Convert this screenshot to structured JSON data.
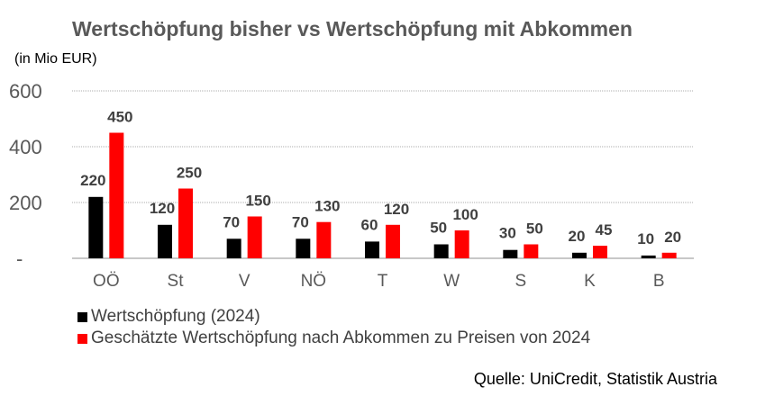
{
  "chart_data": {
    "type": "bar",
    "title": "Wertschöpfung bisher vs Wertschöpfung mit Abkommen",
    "unit_label": "(in Mio EUR)",
    "xlabel": "",
    "ylabel": "",
    "ylim": [
      0,
      600
    ],
    "yticks": [
      0,
      200,
      400,
      600
    ],
    "ytick_labels": [
      "-",
      "200",
      "400",
      "600"
    ],
    "grid": true,
    "categories": [
      "OÖ",
      "St",
      "V",
      "NÖ",
      "T",
      "W",
      "S",
      "K",
      "B"
    ],
    "series": [
      {
        "name": "Wertschöpfung (2024)",
        "color": "#000000",
        "values": [
          220,
          120,
          70,
          70,
          60,
          50,
          30,
          20,
          10
        ]
      },
      {
        "name": "Geschätzte Wertschöpfung nach Abkommen zu Preisen von 2024",
        "color": "#ff0000",
        "values": [
          450,
          250,
          150,
          130,
          120,
          100,
          50,
          45,
          20
        ]
      }
    ],
    "legend_position": "bottom-left",
    "source": "Quelle: UniCredit, Statistik Austria"
  }
}
